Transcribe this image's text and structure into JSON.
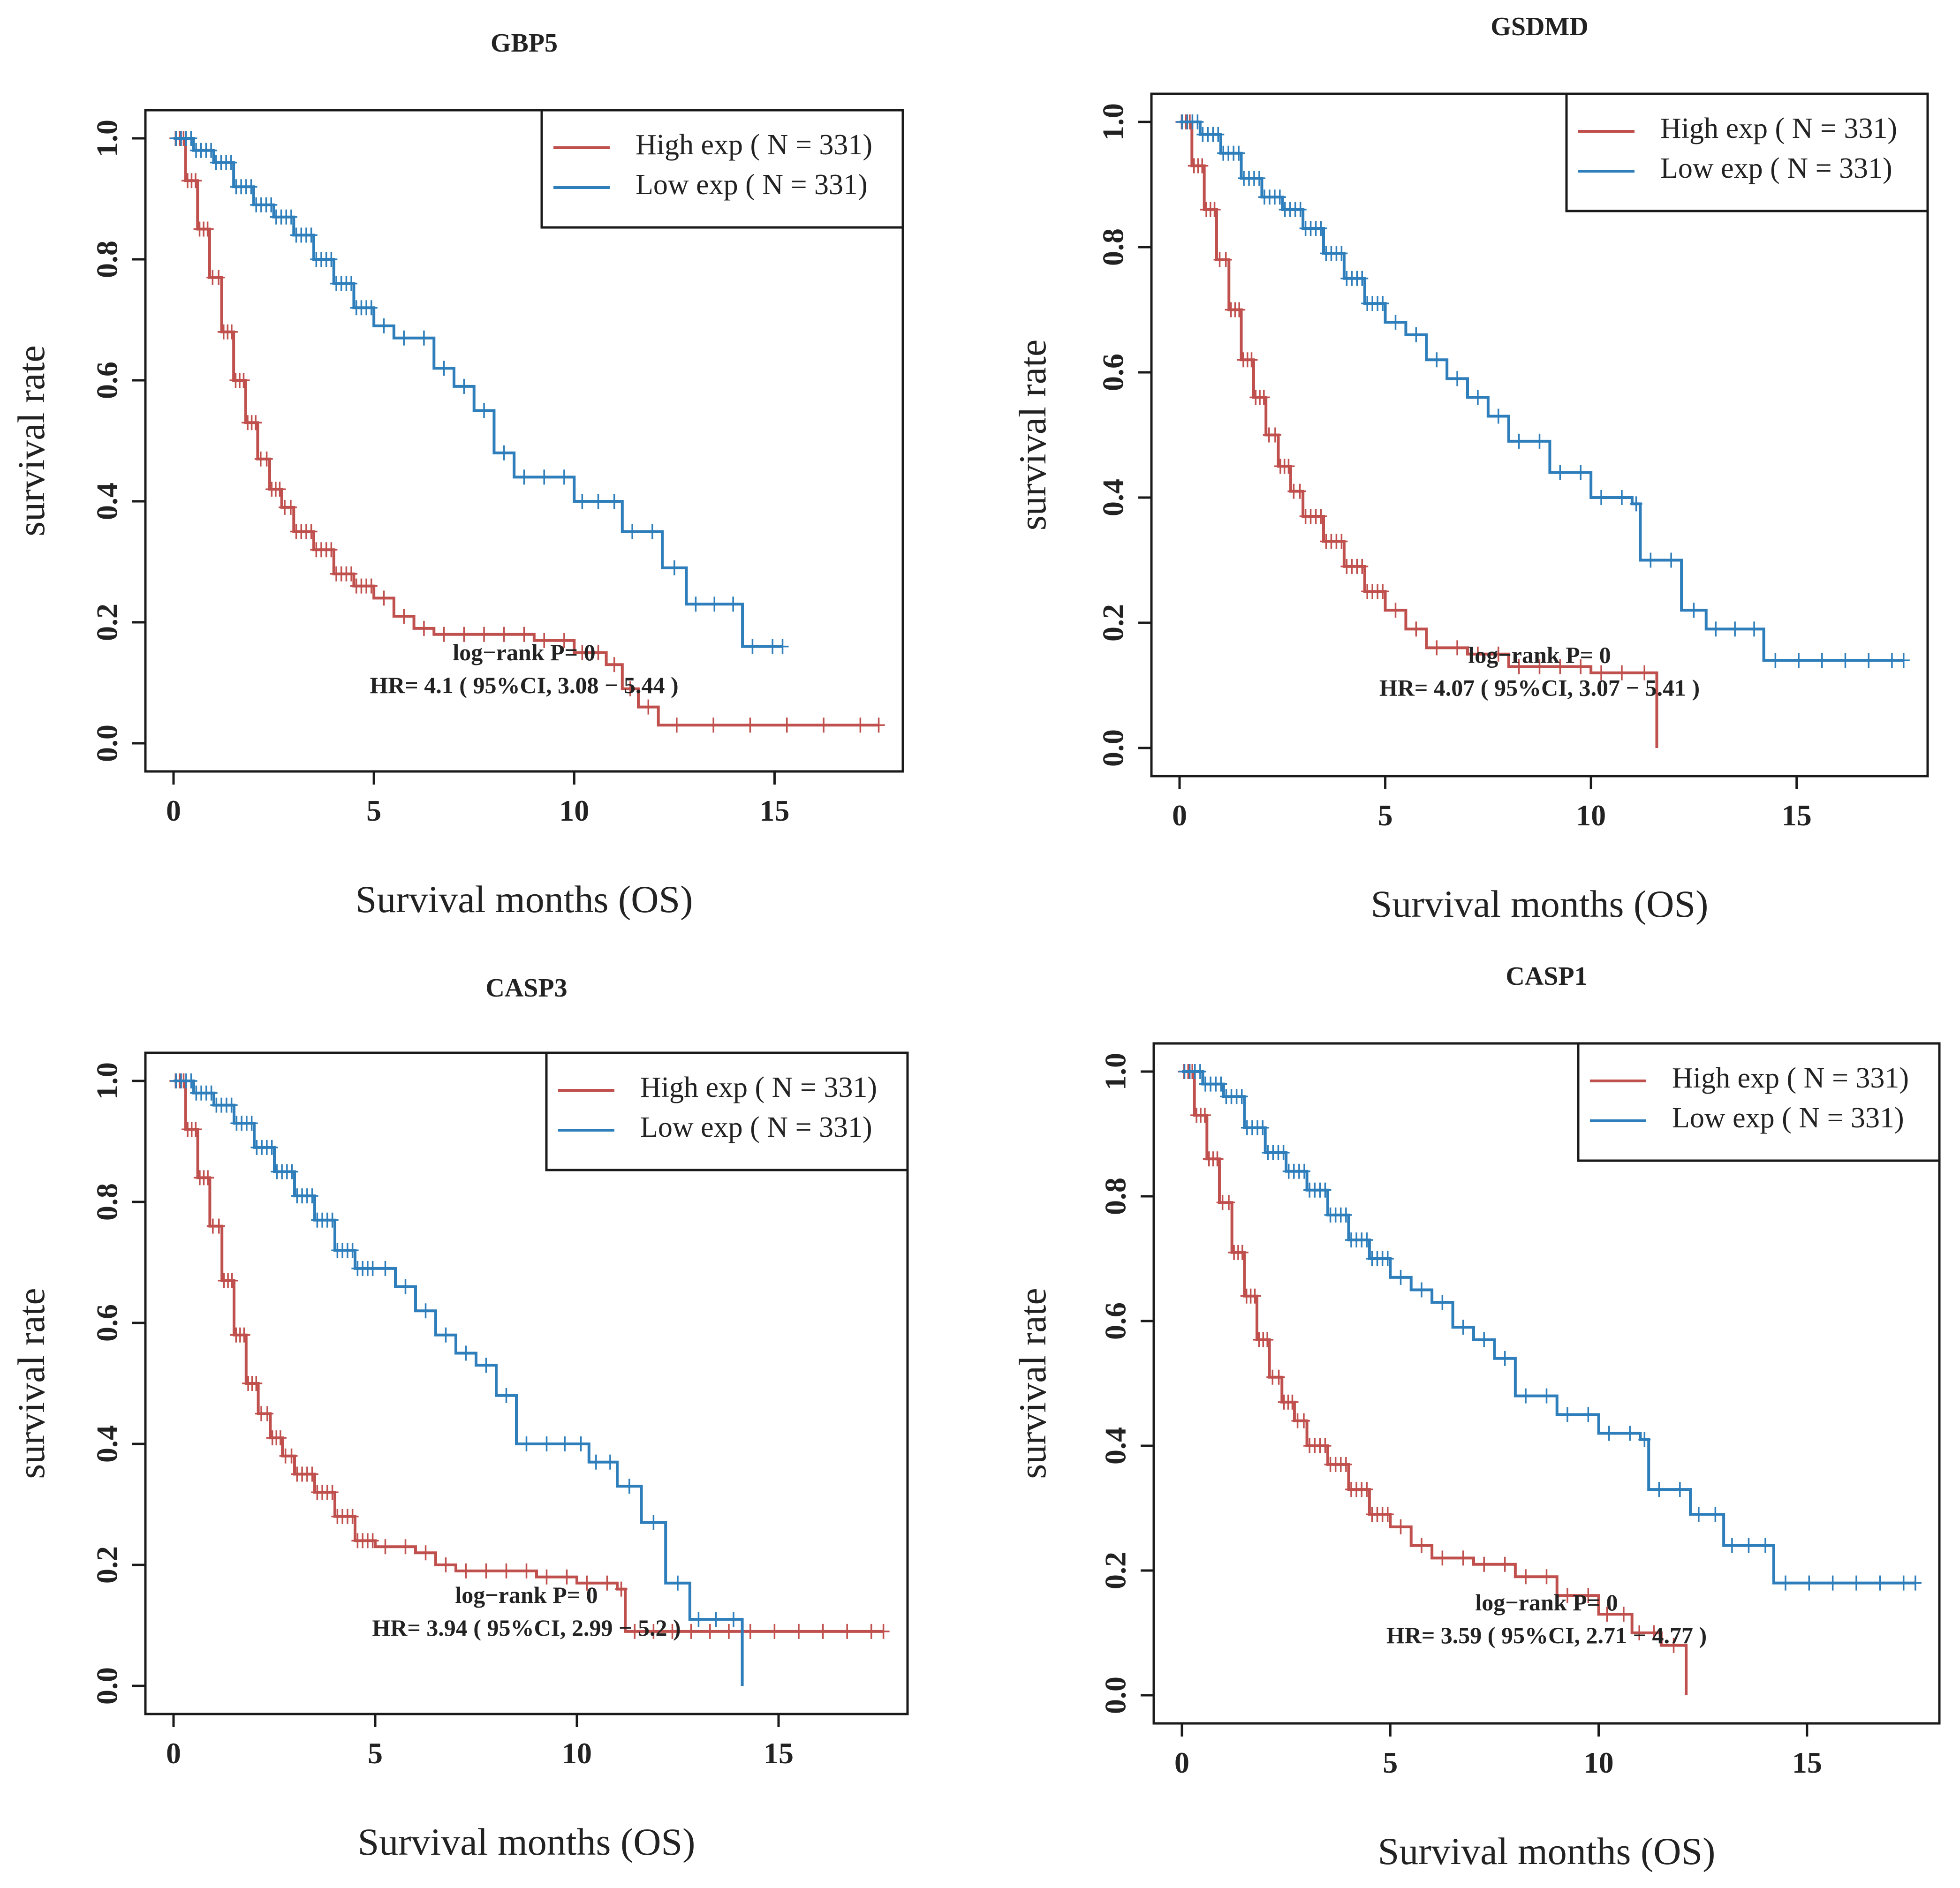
{
  "colors": {
    "high": "#C0504D",
    "low": "#2E7EBB",
    "axis": "#1a1a1a"
  },
  "chart_data": [
    {
      "type": "line",
      "subtype": "kaplan-meier",
      "title": "GBP5",
      "xlabel": "Survival months (OS)",
      "ylabel": "survival rate",
      "xlim": [
        0,
        17.5
      ],
      "ylim": [
        0,
        1
      ],
      "xticks": [
        "0",
        "5",
        "10",
        "15"
      ],
      "xtick_values": [
        0,
        5,
        10,
        15
      ],
      "yticks": [
        "0.0",
        "0.2",
        "0.4",
        "0.6",
        "0.8",
        "1.0"
      ],
      "ytick_values": [
        0,
        0.2,
        0.4,
        0.6,
        0.8,
        1.0
      ],
      "legend": {
        "position": "top-right",
        "entries": [
          "High exp ( N = 331)",
          "Low exp ( N = 331)"
        ]
      },
      "stat_lines": [
        "log−rank P= 0",
        "HR= 4.1 ( 95%CI, 3.08 − 5.44 )"
      ],
      "series": [
        {
          "name": "High exp ( N = 331)",
          "color_key": "high",
          "x": [
            0,
            0.3,
            0.6,
            0.9,
            1.2,
            1.5,
            1.8,
            2.1,
            2.4,
            2.7,
            3.0,
            3.5,
            4.0,
            4.5,
            5.0,
            5.5,
            6.0,
            6.5,
            8.0,
            9.0,
            10.0,
            10.8,
            11.2,
            11.6,
            12.1,
            17.6
          ],
          "y": [
            1.0,
            0.93,
            0.85,
            0.77,
            0.68,
            0.6,
            0.53,
            0.47,
            0.42,
            0.39,
            0.35,
            0.32,
            0.28,
            0.26,
            0.24,
            0.21,
            0.19,
            0.18,
            0.18,
            0.17,
            0.15,
            0.13,
            0.09,
            0.06,
            0.03,
            0.03
          ]
        },
        {
          "name": "Low exp ( N = 331)",
          "color_key": "low",
          "x": [
            0,
            0.5,
            1.0,
            1.5,
            2.0,
            2.5,
            3.0,
            3.5,
            4.0,
            4.5,
            5.0,
            5.5,
            6.0,
            6.5,
            7.0,
            7.5,
            8.0,
            8.5,
            9.0,
            10.0,
            11.2,
            12.2,
            12.8,
            14.2,
            15.2
          ],
          "y": [
            1.0,
            0.98,
            0.96,
            0.92,
            0.89,
            0.87,
            0.84,
            0.8,
            0.76,
            0.72,
            0.69,
            0.67,
            0.67,
            0.62,
            0.59,
            0.55,
            0.48,
            0.44,
            0.44,
            0.4,
            0.35,
            0.29,
            0.23,
            0.16,
            0.16
          ]
        }
      ]
    },
    {
      "type": "line",
      "subtype": "kaplan-meier",
      "title": "GSDMD",
      "xlabel": "Survival months (OS)",
      "ylabel": "survival rate",
      "xlim": [
        0,
        17.5
      ],
      "ylim": [
        0,
        1
      ],
      "xticks": [
        "0",
        "5",
        "10",
        "15"
      ],
      "xtick_values": [
        0,
        5,
        10,
        15
      ],
      "yticks": [
        "0.0",
        "0.2",
        "0.4",
        "0.6",
        "0.8",
        "1.0"
      ],
      "ytick_values": [
        0,
        0.2,
        0.4,
        0.6,
        0.8,
        1.0
      ],
      "legend": {
        "position": "top-right",
        "entries": [
          "High exp ( N = 331)",
          "Low exp ( N = 331)"
        ]
      },
      "stat_lines": [
        "log−rank P= 0",
        "HR= 4.07 ( 95%CI, 3.07 − 5.41 )"
      ],
      "series": [
        {
          "name": "High exp ( N = 331)",
          "color_key": "high",
          "x": [
            0,
            0.3,
            0.6,
            0.9,
            1.2,
            1.5,
            1.8,
            2.1,
            2.4,
            2.7,
            3.0,
            3.5,
            4.0,
            4.5,
            5.0,
            5.5,
            6.0,
            7.0,
            8.0,
            9.0,
            10.0,
            11.0,
            11.6,
            11.6
          ],
          "y": [
            1.0,
            0.93,
            0.86,
            0.78,
            0.7,
            0.62,
            0.56,
            0.5,
            0.45,
            0.41,
            0.37,
            0.33,
            0.29,
            0.25,
            0.22,
            0.19,
            0.16,
            0.15,
            0.13,
            0.13,
            0.12,
            0.12,
            0.12,
            0.0
          ]
        },
        {
          "name": "Low exp ( N = 331)",
          "color_key": "low",
          "x": [
            0,
            0.5,
            1.0,
            1.5,
            2.0,
            2.5,
            3.0,
            3.5,
            4.0,
            4.5,
            5.0,
            5.5,
            6.0,
            6.5,
            7.0,
            7.5,
            8.0,
            9.0,
            10.0,
            11.0,
            11.2,
            12.2,
            12.8,
            14.2,
            17.6
          ],
          "y": [
            1.0,
            0.98,
            0.95,
            0.91,
            0.88,
            0.86,
            0.83,
            0.79,
            0.75,
            0.71,
            0.68,
            0.66,
            0.62,
            0.59,
            0.56,
            0.53,
            0.49,
            0.44,
            0.4,
            0.39,
            0.3,
            0.22,
            0.19,
            0.14,
            0.14
          ]
        }
      ]
    },
    {
      "type": "line",
      "subtype": "kaplan-meier",
      "title": "CASP3",
      "xlabel": "Survival months (OS)",
      "ylabel": "survival rate",
      "xlim": [
        0,
        17.5
      ],
      "ylim": [
        0,
        1
      ],
      "xticks": [
        "0",
        "5",
        "10",
        "15"
      ],
      "xtick_values": [
        0,
        5,
        10,
        15
      ],
      "yticks": [
        "0.0",
        "0.2",
        "0.4",
        "0.6",
        "0.8",
        "1.0"
      ],
      "ytick_values": [
        0,
        0.2,
        0.4,
        0.6,
        0.8,
        1.0
      ],
      "legend": {
        "position": "top-right",
        "entries": [
          "High exp ( N = 331)",
          "Low exp ( N = 331)"
        ]
      },
      "stat_lines": [
        "log−rank P= 0",
        "HR= 3.94 ( 95%CI, 2.99 − 5.2 )"
      ],
      "series": [
        {
          "name": "High exp ( N = 331)",
          "color_key": "high",
          "x": [
            0,
            0.3,
            0.6,
            0.9,
            1.2,
            1.5,
            1.8,
            2.1,
            2.4,
            2.7,
            3.0,
            3.5,
            4.0,
            4.5,
            5.0,
            6.0,
            6.5,
            7.0,
            8.0,
            9.0,
            10.0,
            11.0,
            11.2,
            14.0,
            17.6
          ],
          "y": [
            1.0,
            0.92,
            0.84,
            0.76,
            0.67,
            0.58,
            0.5,
            0.45,
            0.41,
            0.38,
            0.35,
            0.32,
            0.28,
            0.24,
            0.23,
            0.22,
            0.2,
            0.19,
            0.19,
            0.18,
            0.17,
            0.16,
            0.09,
            0.09,
            0.09
          ]
        },
        {
          "name": "Low exp ( N = 331)",
          "color_key": "low",
          "x": [
            0,
            0.5,
            1.0,
            1.5,
            2.0,
            2.5,
            3.0,
            3.5,
            4.0,
            4.5,
            5.0,
            5.5,
            6.0,
            6.5,
            7.0,
            7.5,
            8.0,
            8.5,
            9.5,
            10.3,
            11.0,
            11.6,
            12.2,
            12.8,
            14.1,
            14.1
          ],
          "y": [
            1.0,
            0.98,
            0.96,
            0.93,
            0.89,
            0.85,
            0.81,
            0.77,
            0.72,
            0.69,
            0.69,
            0.66,
            0.62,
            0.58,
            0.55,
            0.53,
            0.48,
            0.4,
            0.4,
            0.37,
            0.33,
            0.27,
            0.17,
            0.11,
            0.11,
            0.0
          ]
        }
      ]
    },
    {
      "type": "line",
      "subtype": "kaplan-meier",
      "title": "CASP1",
      "xlabel": "Survival months (OS)",
      "ylabel": "survival rate",
      "xlim": [
        0,
        17.5
      ],
      "ylim": [
        0,
        1
      ],
      "xticks": [
        "0",
        "5",
        "10",
        "15"
      ],
      "xtick_values": [
        0,
        5,
        10,
        15
      ],
      "yticks": [
        "0.0",
        "0.2",
        "0.4",
        "0.6",
        "0.8",
        "1.0"
      ],
      "ytick_values": [
        0,
        0.2,
        0.4,
        0.6,
        0.8,
        1.0
      ],
      "legend": {
        "position": "top-right",
        "entries": [
          "High exp ( N = 331)",
          "Low exp ( N = 331)"
        ]
      },
      "stat_lines": [
        "log−rank P= 0",
        "HR= 3.59 ( 95%CI, 2.71 − 4.77 )"
      ],
      "series": [
        {
          "name": "High exp ( N = 331)",
          "color_key": "high",
          "x": [
            0,
            0.3,
            0.6,
            0.9,
            1.2,
            1.5,
            1.8,
            2.1,
            2.4,
            2.7,
            3.0,
            3.5,
            4.0,
            4.5,
            5.0,
            5.5,
            6.0,
            7.0,
            8.0,
            9.0,
            10.0,
            10.8,
            11.5,
            12.1,
            12.1
          ],
          "y": [
            1.0,
            0.93,
            0.86,
            0.79,
            0.71,
            0.64,
            0.57,
            0.51,
            0.47,
            0.44,
            0.4,
            0.37,
            0.33,
            0.29,
            0.27,
            0.24,
            0.22,
            0.21,
            0.19,
            0.16,
            0.13,
            0.1,
            0.08,
            0.03,
            0.0
          ]
        },
        {
          "name": "Low exp ( N = 331)",
          "color_key": "low",
          "x": [
            0,
            0.5,
            1.0,
            1.5,
            2.0,
            2.5,
            3.0,
            3.5,
            4.0,
            4.5,
            5.0,
            5.5,
            6.0,
            6.5,
            7.0,
            7.5,
            8.0,
            9.0,
            10.0,
            11.0,
            11.2,
            12.2,
            13.0,
            14.2,
            17.6
          ],
          "y": [
            1.0,
            0.98,
            0.96,
            0.91,
            0.87,
            0.84,
            0.81,
            0.77,
            0.73,
            0.7,
            0.67,
            0.65,
            0.63,
            0.59,
            0.57,
            0.54,
            0.48,
            0.45,
            0.42,
            0.41,
            0.33,
            0.29,
            0.24,
            0.18,
            0.18
          ]
        }
      ]
    }
  ]
}
